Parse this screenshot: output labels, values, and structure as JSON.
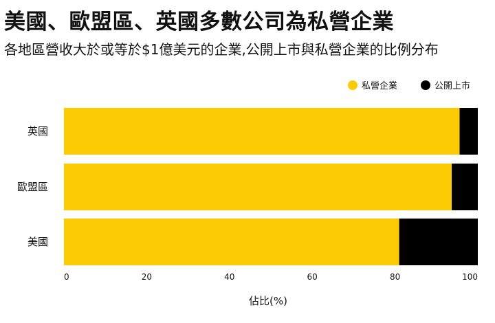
{
  "title": "美國、歐盟區、英國多數公司為私營企業",
  "subtitle": "各地區營收大於或等於$1億美元的企業,公開上市與私營企業的比例分布",
  "chart_data": {
    "type": "bar",
    "orientation": "horizontal",
    "stacked": true,
    "categories": [
      "英國",
      "歐盟區",
      "美國"
    ],
    "series": [
      {
        "name": "私營企業",
        "color": "#FDCB03",
        "values": [
          95.6,
          93.7,
          81.0
        ]
      },
      {
        "name": "公開上市",
        "color": "#000000",
        "values": [
          4.4,
          6.3,
          19.0
        ]
      }
    ],
    "xlabel": "佔比(%)",
    "ylabel": "",
    "xlim": [
      0,
      100
    ],
    "xticks": [
      "0",
      "20",
      "40",
      "60",
      "80",
      "100"
    ],
    "grid": false,
    "legend_position": "top-right"
  }
}
